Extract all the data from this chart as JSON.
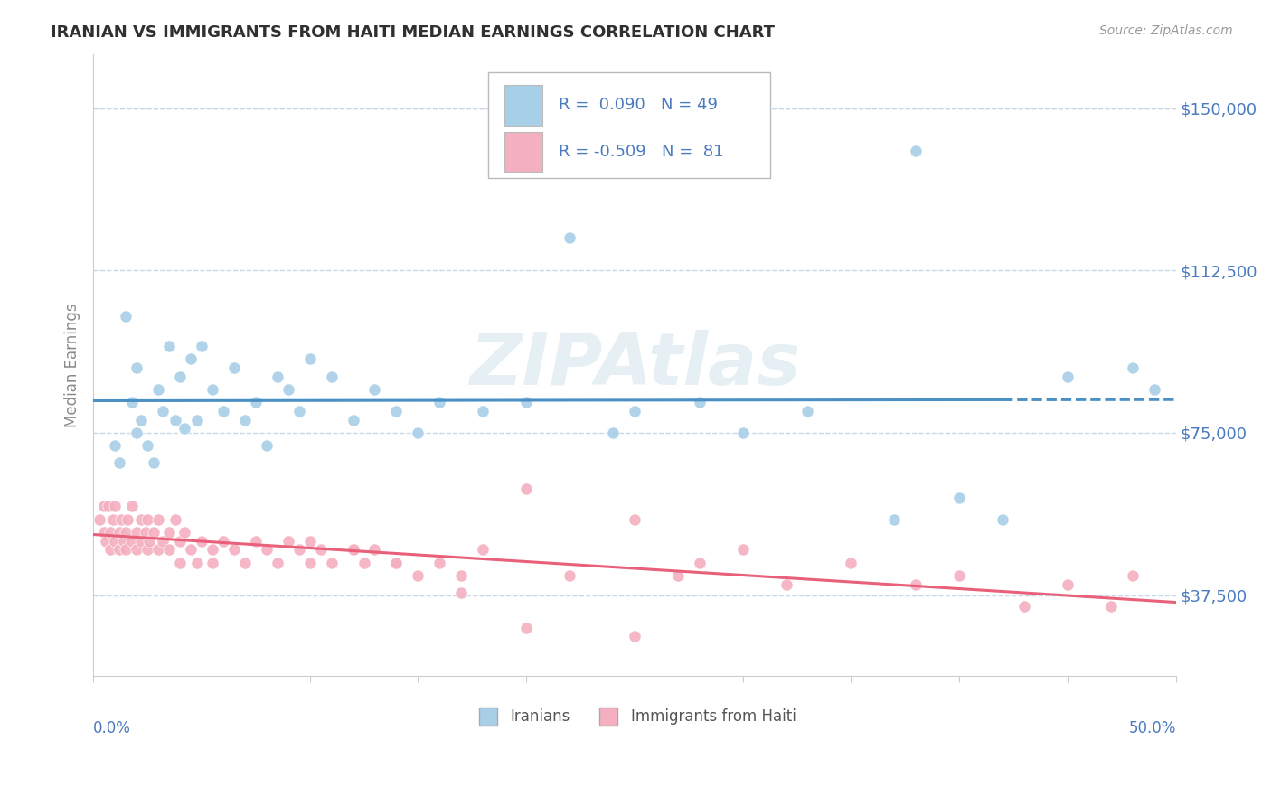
{
  "title": "IRANIAN VS IMMIGRANTS FROM HAITI MEDIAN EARNINGS CORRELATION CHART",
  "source": "Source: ZipAtlas.com",
  "ylabel": "Median Earnings",
  "xlim": [
    0.0,
    50.0
  ],
  "ylim": [
    18750,
    162500
  ],
  "yticks": [
    37500,
    75000,
    112500,
    150000
  ],
  "ytick_labels": [
    "$37,500",
    "$75,000",
    "$112,500",
    "$150,000"
  ],
  "blue_R": 0.09,
  "blue_N": 49,
  "pink_R": -0.509,
  "pink_N": 81,
  "blue_color": "#a8cfe8",
  "pink_color": "#f4afc0",
  "blue_trend_color": "#4a90c4",
  "pink_trend_color": "#e8607a",
  "legend_blue_label": "Iranians",
  "legend_pink_label": "Immigrants from Haiti",
  "watermark": "ZIPAtlas",
  "background_color": "#ffffff",
  "grid_color": "#c8d8e8",
  "title_color": "#303030",
  "axis_label_color": "#4a7abf",
  "blue_scatter_x": [
    1.0,
    1.2,
    1.5,
    1.8,
    2.0,
    2.0,
    2.2,
    2.5,
    2.8,
    3.0,
    3.2,
    3.5,
    3.8,
    4.0,
    4.2,
    4.5,
    4.8,
    5.0,
    5.5,
    6.0,
    6.5,
    7.0,
    7.5,
    8.0,
    8.5,
    9.0,
    9.5,
    10.0,
    11.0,
    12.0,
    13.0,
    14.0,
    15.0,
    16.0,
    18.0,
    20.0,
    22.0,
    24.0,
    25.0,
    28.0,
    30.0,
    33.0,
    37.0,
    38.0,
    40.0,
    42.0,
    45.0,
    48.0,
    49.0
  ],
  "blue_scatter_y": [
    72000,
    68000,
    102000,
    82000,
    90000,
    75000,
    78000,
    72000,
    68000,
    85000,
    80000,
    95000,
    78000,
    88000,
    76000,
    92000,
    78000,
    95000,
    85000,
    80000,
    90000,
    78000,
    82000,
    72000,
    88000,
    85000,
    80000,
    92000,
    88000,
    78000,
    85000,
    80000,
    75000,
    82000,
    80000,
    82000,
    120000,
    75000,
    80000,
    82000,
    75000,
    80000,
    55000,
    140000,
    60000,
    55000,
    88000,
    90000,
    85000
  ],
  "pink_scatter_x": [
    0.3,
    0.5,
    0.5,
    0.6,
    0.7,
    0.8,
    0.8,
    0.9,
    1.0,
    1.0,
    1.2,
    1.2,
    1.3,
    1.4,
    1.5,
    1.5,
    1.6,
    1.8,
    1.8,
    2.0,
    2.0,
    2.2,
    2.2,
    2.4,
    2.5,
    2.5,
    2.6,
    2.8,
    3.0,
    3.0,
    3.2,
    3.5,
    3.5,
    3.8,
    4.0,
    4.0,
    4.2,
    4.5,
    4.8,
    5.0,
    5.5,
    5.5,
    6.0,
    6.5,
    7.0,
    7.5,
    8.0,
    8.5,
    9.0,
    9.5,
    10.0,
    10.5,
    11.0,
    12.0,
    12.5,
    13.0,
    14.0,
    15.0,
    16.0,
    17.0,
    18.0,
    20.0,
    22.0,
    25.0,
    27.0,
    28.0,
    30.0,
    32.0,
    35.0,
    38.0,
    40.0,
    43.0,
    45.0,
    47.0,
    48.0,
    20.0,
    25.0,
    17.0,
    14.0,
    12.0,
    10.0
  ],
  "pink_scatter_y": [
    55000,
    58000,
    52000,
    50000,
    58000,
    52000,
    48000,
    55000,
    50000,
    58000,
    52000,
    48000,
    55000,
    50000,
    52000,
    48000,
    55000,
    50000,
    58000,
    52000,
    48000,
    55000,
    50000,
    52000,
    48000,
    55000,
    50000,
    52000,
    48000,
    55000,
    50000,
    52000,
    48000,
    55000,
    50000,
    45000,
    52000,
    48000,
    45000,
    50000,
    48000,
    45000,
    50000,
    48000,
    45000,
    50000,
    48000,
    45000,
    50000,
    48000,
    45000,
    48000,
    45000,
    48000,
    45000,
    48000,
    45000,
    42000,
    45000,
    42000,
    48000,
    62000,
    42000,
    55000,
    42000,
    45000,
    48000,
    40000,
    45000,
    40000,
    42000,
    35000,
    40000,
    35000,
    42000,
    30000,
    28000,
    38000,
    45000,
    48000,
    50000
  ]
}
